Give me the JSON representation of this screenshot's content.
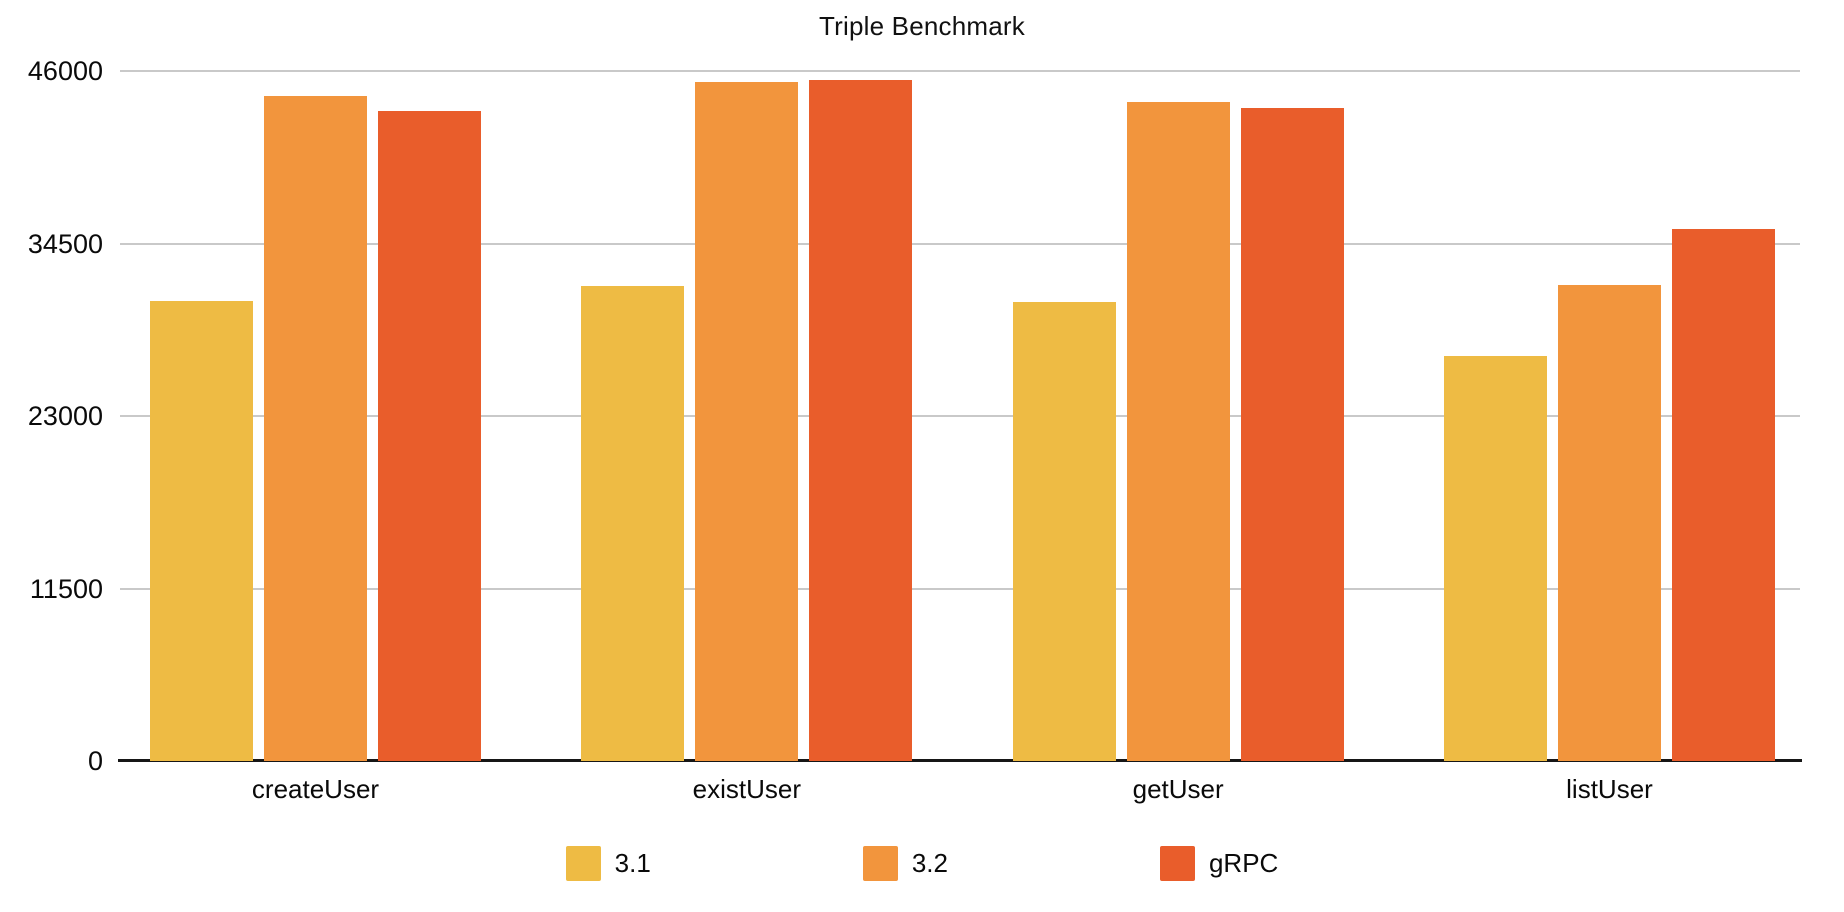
{
  "chart_data": {
    "type": "bar",
    "title": "Triple Benchmark",
    "categories": [
      "createUser",
      "existUser",
      "getUser",
      "listUser"
    ],
    "series": [
      {
        "name": "3.1",
        "color": "#eebb44",
        "values": [
          30700,
          31700,
          30600,
          27000
        ]
      },
      {
        "name": "3.2",
        "color": "#f2953d",
        "values": [
          44350,
          45300,
          43950,
          31750
        ]
      },
      {
        "name": "gRPC",
        "color": "#e95d2b",
        "values": [
          43350,
          45400,
          43550,
          35450
        ]
      }
    ],
    "xlabel": "",
    "ylabel": "",
    "ylim": [
      0,
      46000
    ],
    "yticks": [
      0,
      11500,
      23000,
      34500,
      46000
    ],
    "grid": "horizontal",
    "legend_position": "bottom"
  },
  "colors": {
    "background": "#ffffff",
    "gridline": "#c9c9c9",
    "axis_line": "#161616",
    "text": "#0a0a0a"
  }
}
